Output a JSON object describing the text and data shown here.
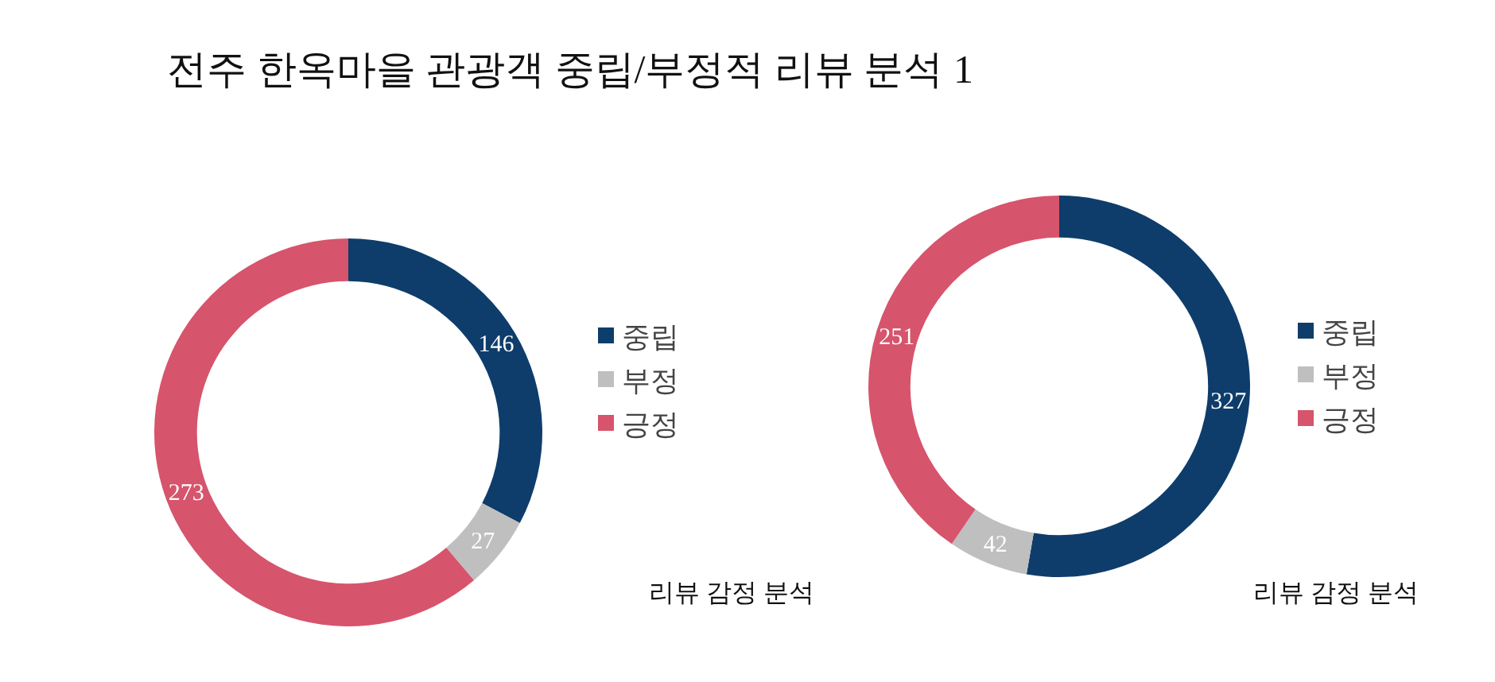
{
  "chart_data": [
    {
      "type": "donut",
      "title": "전주 한옥마을 관광객 중립/부정적 리뷰 분석 1",
      "categories": [
        "중립",
        "부정",
        "긍정"
      ],
      "values": [
        146,
        27,
        273
      ],
      "colors": [
        "#0e3d6b",
        "#bfbfbf",
        "#d6546c"
      ],
      "data_labels": true,
      "legend": "right",
      "annotations": [
        "리뷰 감정 분석"
      ]
    },
    {
      "type": "donut",
      "categories": [
        "중립",
        "부정",
        "긍정"
      ],
      "values": [
        327,
        42,
        251
      ],
      "colors": [
        "#0e3d6b",
        "#bfbfbf",
        "#d6546c"
      ],
      "data_labels": true,
      "legend": "right",
      "annotations": [
        "리뷰 감정 분석"
      ]
    }
  ]
}
